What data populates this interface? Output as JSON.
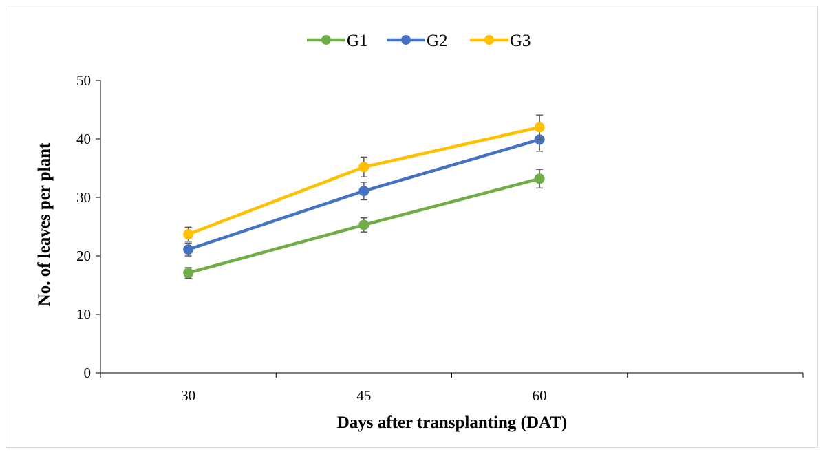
{
  "chart_data": {
    "type": "line",
    "title": "",
    "xlabel": "Days after transplanting (DAT)",
    "ylabel": "No. of leaves per plant",
    "x": [
      30,
      45,
      60
    ],
    "x_tick_labels": [
      "30",
      "45",
      "60"
    ],
    "x_category_slots": 4,
    "ylim": [
      0,
      50
    ],
    "y_ticks": [
      0,
      10,
      20,
      30,
      40,
      50
    ],
    "y_tick_labels": [
      "0",
      "10",
      "20",
      "30",
      "40",
      "50"
    ],
    "grid": false,
    "legend_position": "top-center",
    "series": [
      {
        "name": "G1",
        "color": "#70ad47",
        "values": [
          17.1,
          25.3,
          33.2
        ],
        "errors": [
          0.9,
          1.2,
          1.6
        ]
      },
      {
        "name": "G2",
        "color": "#4472c4",
        "values": [
          21.1,
          31.1,
          39.9
        ],
        "errors": [
          1.1,
          1.5,
          2.0
        ]
      },
      {
        "name": "G3",
        "color": "#ffc000",
        "values": [
          23.7,
          35.2,
          42.0
        ],
        "errors": [
          1.2,
          1.7,
          2.1
        ]
      }
    ]
  }
}
